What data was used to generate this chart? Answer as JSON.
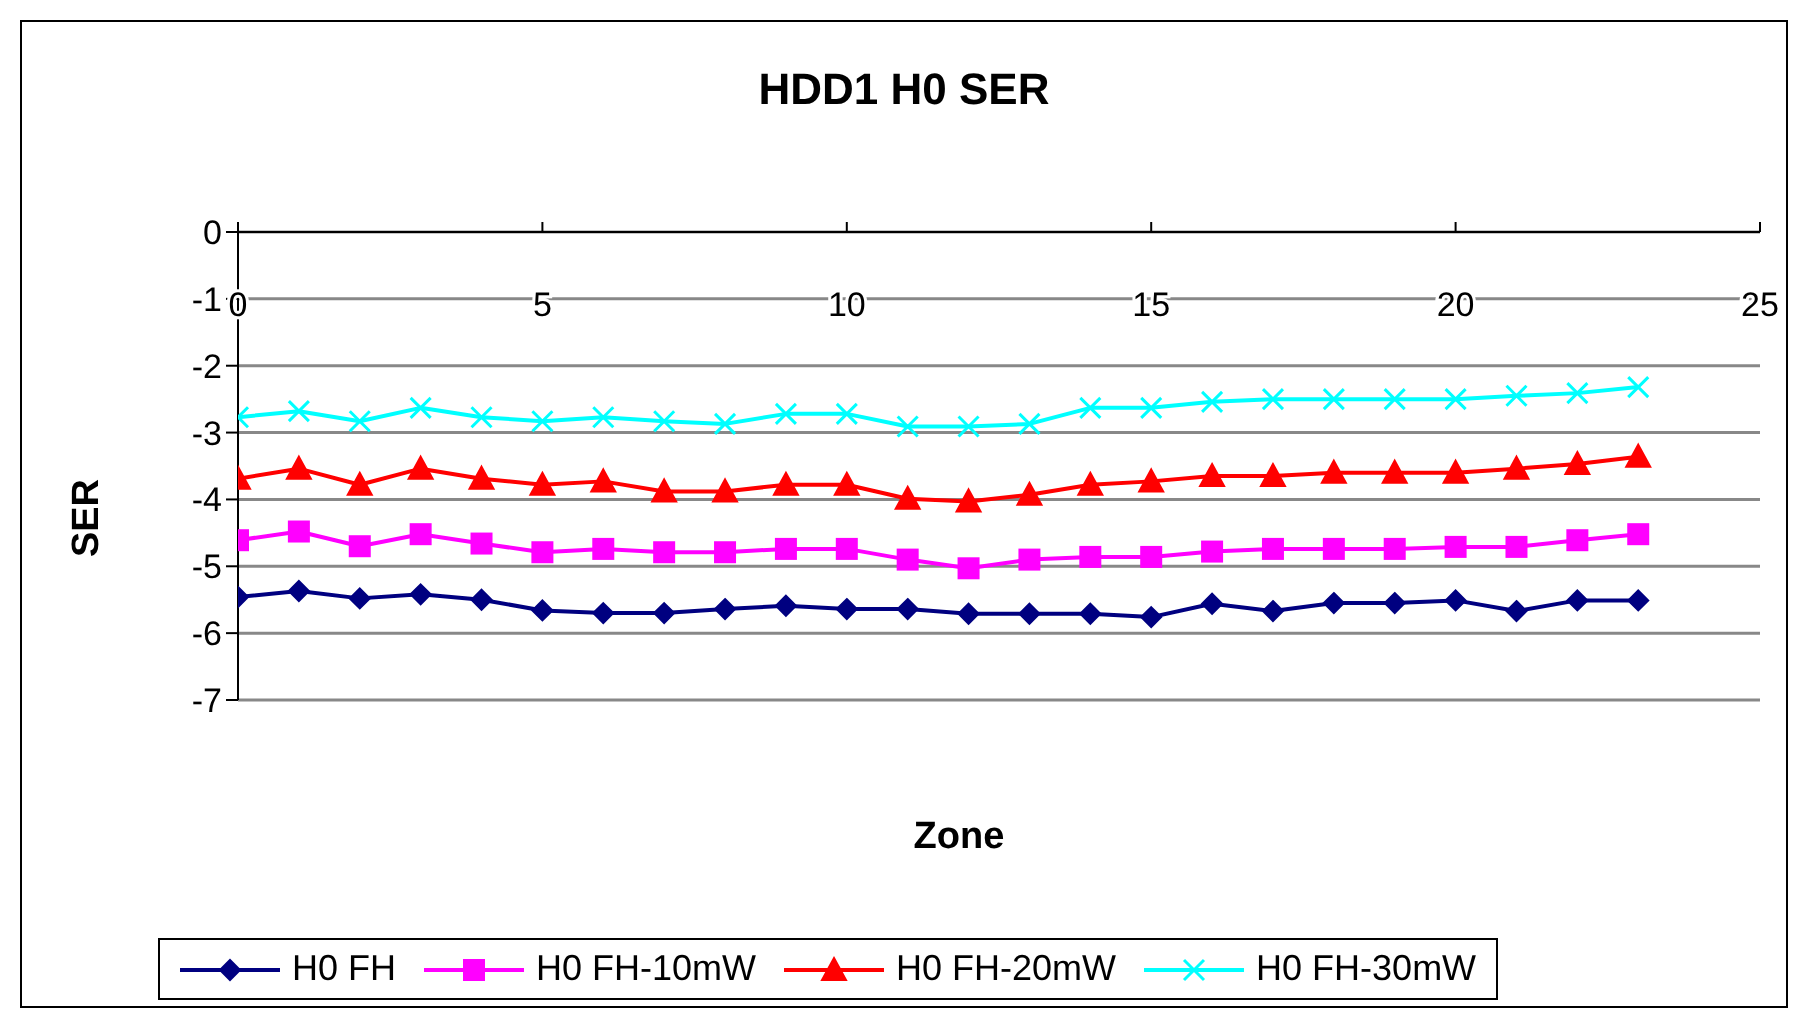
{
  "chart_data": {
    "type": "line",
    "title": "HDD1 H0 SER",
    "xlabel": "Zone",
    "ylabel": "SER",
    "x": [
      0,
      1,
      2,
      3,
      4,
      5,
      6,
      7,
      8,
      9,
      10,
      11,
      12,
      13,
      14,
      15,
      16,
      17,
      18,
      19,
      20,
      21,
      22,
      23
    ],
    "xlim": [
      0,
      25
    ],
    "xticks": [
      0,
      5,
      10,
      15,
      20,
      25
    ],
    "ylim": [
      -7,
      0
    ],
    "yticks": [
      0,
      -1,
      -2,
      -3,
      -4,
      -5,
      -6,
      -7
    ],
    "grid": "y",
    "legend": "bottom",
    "series": [
      {
        "name": "H0 FH",
        "color": "#000080",
        "marker": "diamond",
        "values": [
          -5.46,
          -5.37,
          -5.48,
          -5.42,
          -5.5,
          -5.66,
          -5.7,
          -5.7,
          -5.64,
          -5.59,
          -5.64,
          -5.64,
          -5.71,
          -5.71,
          -5.71,
          -5.76,
          -5.56,
          -5.67,
          -5.55,
          -5.55,
          -5.51,
          -5.67,
          -5.51,
          -5.51
        ]
      },
      {
        "name": "H0 FH-10mW",
        "color": "#ff00ff",
        "marker": "square",
        "values": [
          -4.61,
          -4.48,
          -4.7,
          -4.52,
          -4.66,
          -4.79,
          -4.74,
          -4.79,
          -4.79,
          -4.74,
          -4.74,
          -4.9,
          -5.03,
          -4.9,
          -4.86,
          -4.86,
          -4.78,
          -4.74,
          -4.74,
          -4.74,
          -4.71,
          -4.71,
          -4.61,
          -4.52
        ]
      },
      {
        "name": "H0 FH-20mW",
        "color": "#ff0000",
        "marker": "triangle",
        "values": [
          -3.69,
          -3.54,
          -3.78,
          -3.54,
          -3.69,
          -3.78,
          -3.73,
          -3.88,
          -3.88,
          -3.78,
          -3.78,
          -3.99,
          -4.03,
          -3.93,
          -3.78,
          -3.73,
          -3.65,
          -3.65,
          -3.6,
          -3.6,
          -3.6,
          -3.54,
          -3.47,
          -3.36
        ]
      },
      {
        "name": "H0 FH-30mW",
        "color": "#00ffff",
        "marker": "cross",
        "values": [
          -2.77,
          -2.68,
          -2.83,
          -2.63,
          -2.77,
          -2.83,
          -2.77,
          -2.83,
          -2.87,
          -2.72,
          -2.72,
          -2.91,
          -2.91,
          -2.87,
          -2.63,
          -2.63,
          -2.54,
          -2.5,
          -2.5,
          -2.5,
          -2.5,
          -2.45,
          -2.41,
          -2.32
        ]
      }
    ]
  }
}
